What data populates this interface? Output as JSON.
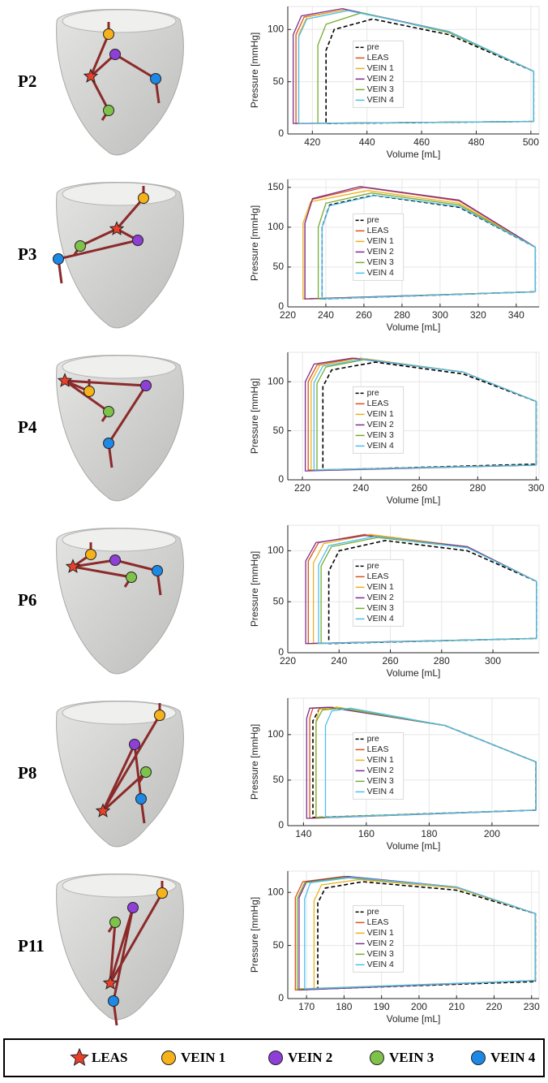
{
  "chart_data": [
    {
      "type": "line",
      "panel_label": "P2",
      "xlabel": "Volume [mL]",
      "ylabel": "Pressure [mmHg]",
      "xlim": [
        411,
        503
      ],
      "ylim": [
        0,
        122
      ],
      "xticks": [
        420,
        440,
        460,
        480,
        500
      ],
      "yticks": [
        0,
        50,
        100
      ],
      "grid": true,
      "legend_loc": "center",
      "series": [
        {
          "name": "pre",
          "color": "#000000",
          "dash": true,
          "x": [
            501,
            501,
            470,
            442,
            428,
            425,
            425,
            501
          ],
          "values": [
            12,
            60,
            95,
            110,
            100,
            80,
            10,
            12
          ]
        },
        {
          "name": "LEAS",
          "color": "#d95319",
          "x": [
            501,
            501,
            470,
            432,
            417,
            414,
            414,
            501
          ],
          "values": [
            12,
            60,
            98,
            119,
            112,
            95,
            10,
            12
          ]
        },
        {
          "name": "VEIN 1",
          "color": "#edb120",
          "x": [
            501,
            501,
            470,
            432,
            418,
            415,
            415,
            501
          ],
          "values": [
            12,
            60,
            98,
            119,
            112,
            95,
            10,
            12
          ]
        },
        {
          "name": "VEIN 2",
          "color": "#7e2f8e",
          "x": [
            501,
            501,
            470,
            431,
            416,
            413,
            413,
            501
          ],
          "values": [
            12,
            60,
            98,
            120,
            113,
            95,
            10,
            12
          ]
        },
        {
          "name": "VEIN 3",
          "color": "#77ac30",
          "x": [
            501,
            501,
            470,
            438,
            425,
            422,
            422,
            501
          ],
          "values": [
            12,
            60,
            97,
            116,
            105,
            85,
            10,
            12
          ]
        },
        {
          "name": "VEIN 4",
          "color": "#4dbeee",
          "x": [
            501,
            501,
            470,
            433,
            418,
            415,
            415,
            501
          ],
          "values": [
            12,
            60,
            98,
            118,
            110,
            93,
            10,
            12
          ]
        }
      ]
    },
    {
      "type": "line",
      "panel_label": "P3",
      "xlabel": "Volume [mL]",
      "ylabel": "Pressure [mmHg]",
      "xlim": [
        220,
        352
      ],
      "ylim": [
        0,
        160
      ],
      "xticks": [
        220,
        240,
        260,
        280,
        300,
        320,
        340
      ],
      "yticks": [
        0,
        50,
        100,
        150
      ],
      "grid": true,
      "legend_loc": "center",
      "series": [
        {
          "name": "pre",
          "color": "#000000",
          "dash": true,
          "x": [
            350,
            350,
            310,
            265,
            242,
            238,
            238,
            350
          ],
          "values": [
            19,
            75,
            125,
            140,
            128,
            100,
            10,
            19
          ]
        },
        {
          "name": "LEAS",
          "color": "#d95319",
          "x": [
            350,
            350,
            310,
            260,
            233,
            229,
            229,
            350
          ],
          "values": [
            19,
            75,
            133,
            150,
            135,
            105,
            10,
            19
          ]
        },
        {
          "name": "VEIN 1",
          "color": "#edb120",
          "x": [
            350,
            350,
            310,
            262,
            232,
            228,
            228,
            350
          ],
          "values": [
            19,
            75,
            130,
            146,
            132,
            105,
            10,
            19
          ]
        },
        {
          "name": "VEIN 2",
          "color": "#7e2f8e",
          "x": [
            350,
            350,
            310,
            258,
            233,
            229,
            229,
            350
          ],
          "values": [
            19,
            75,
            134,
            151,
            136,
            105,
            10,
            19
          ]
        },
        {
          "name": "VEIN 3",
          "color": "#77ac30",
          "x": [
            350,
            350,
            310,
            264,
            240,
            236,
            236,
            350
          ],
          "values": [
            19,
            75,
            128,
            143,
            130,
            100,
            10,
            19
          ]
        },
        {
          "name": "VEIN 4",
          "color": "#4dbeee",
          "x": [
            350,
            350,
            310,
            266,
            242,
            238,
            238,
            350
          ],
          "values": [
            19,
            75,
            126,
            140,
            127,
            100,
            10,
            19
          ]
        }
      ]
    },
    {
      "type": "line",
      "panel_label": "P4",
      "xlabel": "Volume [mL]",
      "ylabel": "Pressure [mmHg]",
      "xlim": [
        215,
        301
      ],
      "ylim": [
        0,
        130
      ],
      "xticks": [
        220,
        240,
        260,
        280,
        300
      ],
      "yticks": [
        0,
        50,
        100
      ],
      "grid": true,
      "legend_loc": "center",
      "series": [
        {
          "name": "pre",
          "color": "#000000",
          "dash": true,
          "x": [
            300,
            300,
            275,
            245,
            230,
            227,
            227,
            300
          ],
          "values": [
            16,
            80,
            108,
            120,
            112,
            95,
            10,
            16
          ]
        },
        {
          "name": "LEAS",
          "color": "#d95319",
          "x": [
            300,
            300,
            275,
            238,
            225,
            222,
            222,
            300
          ],
          "values": [
            15,
            80,
            110,
            124,
            117,
            100,
            10,
            15
          ]
        },
        {
          "name": "VEIN 1",
          "color": "#edb120",
          "x": [
            300,
            300,
            275,
            240,
            226,
            223,
            223,
            300
          ],
          "values": [
            15,
            80,
            110,
            124,
            117,
            100,
            10,
            15
          ]
        },
        {
          "name": "VEIN 2",
          "color": "#7e2f8e",
          "x": [
            300,
            300,
            275,
            237,
            224,
            221,
            221,
            300
          ],
          "values": [
            15,
            80,
            110,
            124,
            118,
            100,
            9,
            15
          ]
        },
        {
          "name": "VEIN 3",
          "color": "#77ac30",
          "x": [
            300,
            300,
            275,
            242,
            228,
            225,
            225,
            300
          ],
          "values": [
            15,
            80,
            110,
            123,
            115,
            98,
            10,
            15
          ]
        },
        {
          "name": "VEIN 4",
          "color": "#4dbeee",
          "x": [
            300,
            300,
            275,
            241,
            227,
            224,
            224,
            300
          ],
          "values": [
            15,
            80,
            110,
            123,
            116,
            99,
            10,
            15
          ]
        }
      ]
    },
    {
      "type": "line",
      "panel_label": "P6",
      "xlabel": "Volume [mL]",
      "ylabel": "Pressure [mmHg]",
      "xlim": [
        220,
        318
      ],
      "ylim": [
        0,
        125
      ],
      "xticks": [
        220,
        240,
        260,
        280,
        300
      ],
      "yticks": [
        0,
        50,
        100
      ],
      "grid": true,
      "legend_loc": "center",
      "series": [
        {
          "name": "pre",
          "color": "#000000",
          "dash": true,
          "x": [
            317,
            317,
            290,
            258,
            240,
            236,
            236,
            317
          ],
          "values": [
            14,
            70,
            100,
            110,
            100,
            80,
            9,
            14
          ]
        },
        {
          "name": "LEAS",
          "color": "#d95319",
          "x": [
            317,
            317,
            290,
            250,
            232,
            228,
            228,
            317
          ],
          "values": [
            14,
            70,
            104,
            116,
            108,
            90,
            9,
            14
          ]
        },
        {
          "name": "VEIN 1",
          "color": "#edb120",
          "x": [
            317,
            317,
            290,
            252,
            234,
            230,
            230,
            317
          ],
          "values": [
            14,
            70,
            104,
            116,
            107,
            88,
            9,
            14
          ]
        },
        {
          "name": "VEIN 2",
          "color": "#7e2f8e",
          "x": [
            317,
            317,
            290,
            250,
            231,
            227,
            227,
            317
          ],
          "values": [
            14,
            70,
            104,
            115,
            108,
            90,
            9,
            14
          ]
        },
        {
          "name": "VEIN 3",
          "color": "#77ac30",
          "x": [
            317,
            317,
            290,
            255,
            237,
            233,
            233,
            317
          ],
          "values": [
            14,
            70,
            103,
            113,
            104,
            85,
            9,
            14
          ]
        },
        {
          "name": "VEIN 4",
          "color": "#4dbeee",
          "x": [
            317,
            317,
            290,
            254,
            236,
            232,
            232,
            317
          ],
          "values": [
            14,
            70,
            103,
            114,
            105,
            86,
            9,
            14
          ]
        }
      ]
    },
    {
      "type": "line",
      "panel_label": "P8",
      "xlabel": "Volume [mL]",
      "ylabel": "Pressure [mmHg]",
      "xlim": [
        135,
        215
      ],
      "ylim": [
        0,
        140
      ],
      "xticks": [
        140,
        160,
        180,
        200
      ],
      "yticks": [
        0,
        50,
        100
      ],
      "grid": true,
      "legend_loc": "center",
      "series": [
        {
          "name": "pre",
          "color": "#000000",
          "dash": true,
          "x": [
            214,
            214,
            185,
            150,
            145,
            143,
            143,
            214
          ],
          "values": [
            17,
            70,
            110,
            130,
            128,
            115,
            9,
            17
          ]
        },
        {
          "name": "LEAS",
          "color": "#d95319",
          "x": [
            214,
            214,
            185,
            149,
            143,
            142,
            142,
            214
          ],
          "values": [
            17,
            70,
            110,
            130,
            129,
            118,
            8,
            17
          ]
        },
        {
          "name": "VEIN 1",
          "color": "#edb120",
          "x": [
            214,
            214,
            185,
            151,
            145,
            144,
            144,
            214
          ],
          "values": [
            17,
            70,
            110,
            130,
            128,
            115,
            9,
            17
          ]
        },
        {
          "name": "VEIN 2",
          "color": "#7e2f8e",
          "x": [
            214,
            214,
            185,
            148,
            142,
            141,
            141,
            214
          ],
          "values": [
            17,
            70,
            110,
            130,
            129,
            118,
            8,
            17
          ]
        },
        {
          "name": "VEIN 3",
          "color": "#77ac30",
          "x": [
            214,
            214,
            185,
            152,
            146,
            144,
            144,
            214
          ],
          "values": [
            17,
            70,
            110,
            129,
            127,
            114,
            9,
            17
          ]
        },
        {
          "name": "VEIN 4",
          "color": "#4dbeee",
          "x": [
            214,
            214,
            185,
            155,
            149,
            147,
            147,
            214
          ],
          "values": [
            17,
            70,
            110,
            129,
            126,
            110,
            9,
            17
          ]
        }
      ]
    },
    {
      "type": "line",
      "panel_label": "P11",
      "xlabel": "Volume [mL]",
      "ylabel": "Pressure [mmHg]",
      "xlim": [
        165,
        232
      ],
      "ylim": [
        0,
        120
      ],
      "xticks": [
        170,
        180,
        190,
        200,
        210,
        220,
        230
      ],
      "yticks": [
        0,
        50,
        100
      ],
      "grid": true,
      "legend_loc": "center",
      "series": [
        {
          "name": "pre",
          "color": "#000000",
          "dash": true,
          "x": [
            231,
            231,
            210,
            185,
            175,
            173,
            173,
            231
          ],
          "values": [
            16,
            80,
            102,
            110,
            104,
            90,
            9,
            16
          ]
        },
        {
          "name": "LEAS",
          "color": "#d95319",
          "x": [
            231,
            231,
            210,
            180,
            169,
            167,
            167,
            231
          ],
          "values": [
            17,
            80,
            105,
            115,
            110,
            95,
            8,
            17
          ]
        },
        {
          "name": "VEIN 1",
          "color": "#edb120",
          "x": [
            231,
            231,
            210,
            184,
            174,
            172,
            172,
            231
          ],
          "values": [
            17,
            80,
            104,
            112,
            107,
            92,
            9,
            17
          ]
        },
        {
          "name": "VEIN 2",
          "color": "#7e2f8e",
          "x": [
            231,
            231,
            210,
            181,
            170,
            168,
            168,
            231
          ],
          "values": [
            17,
            80,
            105,
            115,
            110,
            95,
            8,
            17
          ]
        },
        {
          "name": "VEIN 3",
          "color": "#77ac30",
          "x": [
            231,
            231,
            210,
            180,
            169.5,
            167.5,
            167.5,
            231
          ],
          "values": [
            17,
            80,
            105,
            114,
            109,
            94,
            9,
            17
          ]
        },
        {
          "name": "VEIN 4",
          "color": "#4dbeee",
          "x": [
            231,
            231,
            210,
            182,
            171,
            169.5,
            169.5,
            231
          ],
          "values": [
            17,
            80,
            105,
            114,
            109,
            94,
            9,
            17
          ]
        }
      ]
    }
  ],
  "pacing_sites": [
    {
      "name": "LEAS",
      "color": "#e8402a",
      "marker": "star"
    },
    {
      "name": "VEIN 1",
      "color": "#f5b21a",
      "marker": "circle"
    },
    {
      "name": "VEIN 2",
      "color": "#8e3fd6",
      "marker": "circle"
    },
    {
      "name": "VEIN 3",
      "color": "#7fc24a",
      "marker": "circle"
    },
    {
      "name": "VEIN 4",
      "color": "#1e88e5",
      "marker": "circle"
    }
  ]
}
